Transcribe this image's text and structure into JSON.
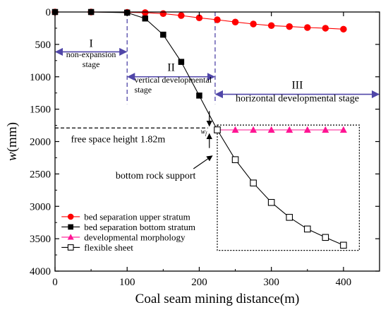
{
  "chart_data": {
    "type": "line",
    "xlabel": "Coal seam mining distance(m)",
    "ylabel": "w(mm)",
    "xlim": [
      0,
      450
    ],
    "ylim": [
      4000,
      0
    ],
    "y_axis_inverted": true,
    "x_ticks": [
      0,
      100,
      200,
      300,
      400
    ],
    "y_ticks": [
      0,
      500,
      1000,
      1500,
      2000,
      2500,
      3000,
      3500,
      4000
    ],
    "grid": false,
    "legend_position": "bottom-left",
    "series": [
      {
        "name": "bed separation upper stratum",
        "marker": "circle",
        "color": "#ff0000",
        "x": [
          0,
          50,
          100,
          125,
          150,
          175,
          200,
          225,
          250,
          275,
          300,
          325,
          350,
          375,
          400
        ],
        "y": [
          0,
          0,
          5,
          10,
          25,
          55,
          90,
          120,
          155,
          185,
          210,
          225,
          240,
          250,
          265
        ]
      },
      {
        "name": "bed separation bottom stratum",
        "marker": "square",
        "color": "#000000",
        "x": [
          0,
          50,
          100,
          125,
          150,
          175,
          200,
          225
        ],
        "y": [
          0,
          0,
          10,
          100,
          350,
          770,
          1290,
          1820
        ]
      },
      {
        "name": "developmental morphology",
        "marker": "triangle",
        "color": "#ff1493",
        "x": [
          225,
          250,
          275,
          300,
          325,
          350,
          375,
          400
        ],
        "y": [
          1820,
          1820,
          1820,
          1820,
          1820,
          1820,
          1820,
          1820
        ]
      },
      {
        "name": "flexible sheet",
        "marker": "open-square",
        "color": "#000000",
        "x": [
          225,
          250,
          275,
          300,
          325,
          350,
          375,
          400
        ],
        "y": [
          1820,
          2280,
          2640,
          2940,
          3170,
          3350,
          3480,
          3600
        ]
      }
    ],
    "stages": [
      {
        "roman": "I",
        "label": "non-expansion\nstage",
        "x_range": [
          0,
          100
        ]
      },
      {
        "roman": "II",
        "label": "vertical developmental\nstage",
        "x_range": [
          100,
          222
        ]
      },
      {
        "roman": "III",
        "label": "horizontal developmental stage",
        "x_range": [
          222,
          450
        ]
      }
    ],
    "annotations": {
      "free_space": "free space height 1.82m",
      "w_symbol": "w",
      "w_subscript": "f",
      "bottom_support": "bottom rock support"
    },
    "colors": {
      "stage_arrow": "#5046a8",
      "stage_divider": "#5046a8"
    }
  }
}
